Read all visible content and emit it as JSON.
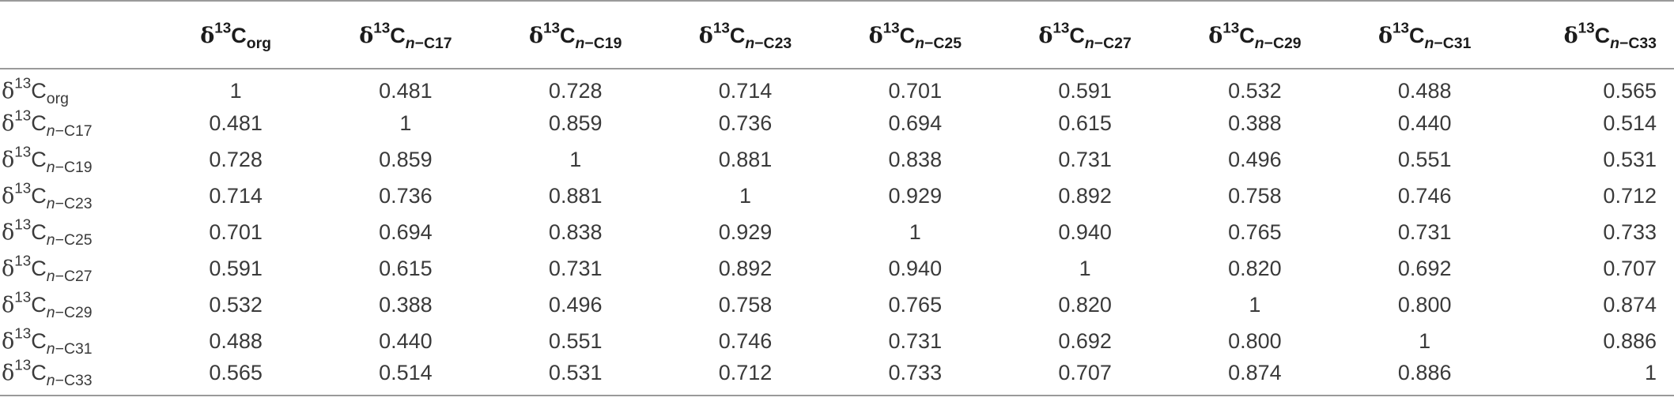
{
  "table": {
    "corner": "",
    "symbol": "δ",
    "isotope": "13",
    "element": "C",
    "columns": [
      {
        "sub_prefix": "",
        "sub_rest": "org"
      },
      {
        "sub_prefix": "n",
        "sub_rest": "−C17"
      },
      {
        "sub_prefix": "n",
        "sub_rest": "−C19"
      },
      {
        "sub_prefix": "n",
        "sub_rest": "−C23"
      },
      {
        "sub_prefix": "n",
        "sub_rest": "−C25"
      },
      {
        "sub_prefix": "n",
        "sub_rest": "−C27"
      },
      {
        "sub_prefix": "n",
        "sub_rest": "−C29"
      },
      {
        "sub_prefix": "n",
        "sub_rest": "−C31"
      },
      {
        "sub_prefix": "n",
        "sub_rest": "−C33"
      }
    ],
    "rows": [
      {
        "sub_prefix": "",
        "sub_rest": "org",
        "values": [
          "1",
          "0.481",
          "0.728",
          "0.714",
          "0.701",
          "0.591",
          "0.532",
          "0.488",
          "0.565"
        ]
      },
      {
        "sub_prefix": "n",
        "sub_rest": "−C17",
        "values": [
          "0.481",
          "1",
          "0.859",
          "0.736",
          "0.694",
          "0.615",
          "0.388",
          "0.440",
          "0.514"
        ]
      },
      {
        "sub_prefix": "n",
        "sub_rest": "−C19",
        "values": [
          "0.728",
          "0.859",
          "1",
          "0.881",
          "0.838",
          "0.731",
          "0.496",
          "0.551",
          "0.531"
        ]
      },
      {
        "sub_prefix": "n",
        "sub_rest": "−C23",
        "values": [
          "0.714",
          "0.736",
          "0.881",
          "1",
          "0.929",
          "0.892",
          "0.758",
          "0.746",
          "0.712"
        ]
      },
      {
        "sub_prefix": "n",
        "sub_rest": "−C25",
        "values": [
          "0.701",
          "0.694",
          "0.838",
          "0.929",
          "1",
          "0.940",
          "0.765",
          "0.731",
          "0.733"
        ]
      },
      {
        "sub_prefix": "n",
        "sub_rest": "−C27",
        "values": [
          "0.591",
          "0.615",
          "0.731",
          "0.892",
          "0.940",
          "1",
          "0.820",
          "0.692",
          "0.707"
        ]
      },
      {
        "sub_prefix": "n",
        "sub_rest": "−C29",
        "values": [
          "0.532",
          "0.388",
          "0.496",
          "0.758",
          "0.765",
          "0.820",
          "1",
          "0.800",
          "0.874"
        ]
      },
      {
        "sub_prefix": "n",
        "sub_rest": "−C31",
        "values": [
          "0.488",
          "0.440",
          "0.551",
          "0.746",
          "0.731",
          "0.692",
          "0.800",
          "1",
          "0.886"
        ]
      },
      {
        "sub_prefix": "n",
        "sub_rest": "−C33",
        "values": [
          "0.565",
          "0.514",
          "0.531",
          "0.712",
          "0.733",
          "0.707",
          "0.874",
          "0.886",
          "1"
        ]
      }
    ]
  }
}
